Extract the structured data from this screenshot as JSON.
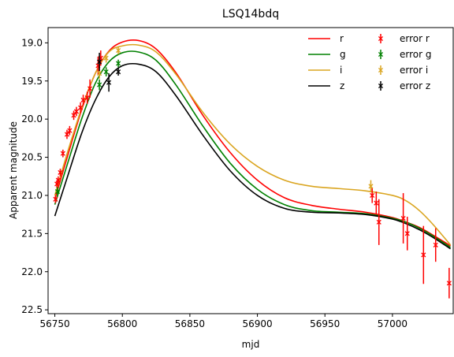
{
  "chart_data": {
    "type": "line",
    "title": "LSQ14bdq",
    "xlabel": "mjd",
    "ylabel": "Apparent magnitude",
    "xlim": [
      56745,
      57045
    ],
    "ylim": [
      22.55,
      18.8
    ],
    "y_inverted": true,
    "grid": false,
    "legend_position": "top-right",
    "x_ticks": [
      {
        "value": 56750,
        "label": "56750"
      },
      {
        "value": 56800,
        "label": "56800"
      },
      {
        "value": 56850,
        "label": "56850"
      },
      {
        "value": 56900,
        "label": "56900"
      },
      {
        "value": 56950,
        "label": "56950"
      },
      {
        "value": 57000,
        "label": "57000"
      }
    ],
    "y_ticks": [
      {
        "value": 19.0,
        "label": "19.0"
      },
      {
        "value": 19.5,
        "label": "19.5"
      },
      {
        "value": 20.0,
        "label": "20.0"
      },
      {
        "value": 20.5,
        "label": "20.5"
      },
      {
        "value": 21.0,
        "label": "21.0"
      },
      {
        "value": 21.5,
        "label": "21.5"
      },
      {
        "value": 22.0,
        "label": "22.0"
      },
      {
        "value": 22.5,
        "label": "22.5"
      }
    ],
    "model_series": [
      {
        "name": "r",
        "color": "#ff0000",
        "x": [
          56750,
          56760,
          56770,
          56780,
          56790,
          56800,
          56812,
          56825,
          56840,
          56860,
          56880,
          56900,
          56920,
          56940,
          56960,
          56980,
          57000,
          57010,
          57020,
          57030,
          57043
        ],
        "y": [
          21.05,
          20.45,
          19.87,
          19.4,
          19.11,
          18.99,
          18.97,
          19.08,
          19.4,
          19.96,
          20.44,
          20.8,
          21.03,
          21.13,
          21.18,
          21.22,
          21.29,
          21.35,
          21.42,
          21.52,
          21.66
        ]
      },
      {
        "name": "g",
        "color": "#008000",
        "x": [
          56750,
          56760,
          56770,
          56780,
          56790,
          56800,
          56812,
          56825,
          56840,
          56860,
          56880,
          56900,
          56920,
          56940,
          56960,
          56980,
          57000,
          57010,
          57020,
          57030,
          57043
        ],
        "y": [
          21.12,
          20.55,
          19.99,
          19.53,
          19.25,
          19.13,
          19.12,
          19.23,
          19.56,
          20.1,
          20.58,
          20.92,
          21.12,
          21.2,
          21.22,
          21.24,
          21.3,
          21.35,
          21.43,
          21.53,
          21.68
        ]
      },
      {
        "name": "i",
        "color": "#daa520",
        "x": [
          56750,
          56760,
          56770,
          56780,
          56790,
          56800,
          56812,
          56825,
          56840,
          56860,
          56880,
          56900,
          56920,
          56940,
          56960,
          56980,
          57000,
          57010,
          57020,
          57030,
          57043
        ],
        "y": [
          21.0,
          20.4,
          19.85,
          19.4,
          19.12,
          19.04,
          19.03,
          19.12,
          19.42,
          19.92,
          20.33,
          20.62,
          20.8,
          20.88,
          20.91,
          20.94,
          21.0,
          21.07,
          21.2,
          21.38,
          21.65
        ]
      },
      {
        "name": "z",
        "color": "#000000",
        "x": [
          56750,
          56760,
          56770,
          56780,
          56790,
          56800,
          56812,
          56825,
          56840,
          56860,
          56880,
          56900,
          56920,
          56940,
          56960,
          56980,
          57000,
          57010,
          57020,
          57030,
          57043
        ],
        "y": [
          21.27,
          20.72,
          20.18,
          19.75,
          19.45,
          19.3,
          19.28,
          19.38,
          19.7,
          20.22,
          20.68,
          21.0,
          21.17,
          21.22,
          21.23,
          21.25,
          21.31,
          21.37,
          21.45,
          21.55,
          21.7
        ]
      }
    ],
    "error_series": [
      {
        "name": "error r",
        "color": "#ff0000",
        "points": [
          {
            "x": 56750.5,
            "y": 21.05,
            "err": 0.05
          },
          {
            "x": 56751.5,
            "y": 20.85,
            "err": 0.05
          },
          {
            "x": 56752.5,
            "y": 20.8,
            "err": 0.05
          },
          {
            "x": 56754,
            "y": 20.7,
            "err": 0.05
          },
          {
            "x": 56756,
            "y": 20.45,
            "err": 0.05
          },
          {
            "x": 56759,
            "y": 20.2,
            "err": 0.06
          },
          {
            "x": 56761,
            "y": 20.15,
            "err": 0.06
          },
          {
            "x": 56764,
            "y": 19.95,
            "err": 0.06
          },
          {
            "x": 56766,
            "y": 19.9,
            "err": 0.06
          },
          {
            "x": 56769,
            "y": 19.85,
            "err": 0.07
          },
          {
            "x": 56771,
            "y": 19.75,
            "err": 0.07
          },
          {
            "x": 56774,
            "y": 19.72,
            "err": 0.08
          },
          {
            "x": 56776,
            "y": 19.6,
            "err": 0.12
          },
          {
            "x": 56782,
            "y": 19.3,
            "err": 0.12
          },
          {
            "x": 56784,
            "y": 19.2,
            "err": 0.1
          },
          {
            "x": 56985,
            "y": 21.0,
            "err": 0.1
          },
          {
            "x": 56988,
            "y": 21.1,
            "err": 0.15
          },
          {
            "x": 56990,
            "y": 21.35,
            "err": 0.3
          },
          {
            "x": 57008,
            "y": 21.3,
            "err": 0.33
          },
          {
            "x": 57011,
            "y": 21.5,
            "err": 0.22
          },
          {
            "x": 57023,
            "y": 21.78,
            "err": 0.38
          },
          {
            "x": 57032,
            "y": 21.65,
            "err": 0.22
          },
          {
            "x": 57042,
            "y": 22.15,
            "err": 0.2
          }
        ]
      },
      {
        "name": "error g",
        "color": "#008000",
        "points": [
          {
            "x": 56752,
            "y": 20.95,
            "err": 0.06
          },
          {
            "x": 56783,
            "y": 19.55,
            "err": 0.07
          },
          {
            "x": 56788,
            "y": 19.38,
            "err": 0.06
          },
          {
            "x": 56797,
            "y": 19.27,
            "err": 0.05
          }
        ]
      },
      {
        "name": "error i",
        "color": "#daa520",
        "points": [
          {
            "x": 56783,
            "y": 19.4,
            "err": 0.07
          },
          {
            "x": 56788,
            "y": 19.2,
            "err": 0.06
          },
          {
            "x": 56797,
            "y": 19.1,
            "err": 0.05
          },
          {
            "x": 56984,
            "y": 20.88,
            "err": 0.08
          }
        ]
      },
      {
        "name": "error z",
        "color": "#000000",
        "points": [
          {
            "x": 56783,
            "y": 19.25,
            "err": 0.12
          },
          {
            "x": 56790,
            "y": 19.52,
            "err": 0.12
          },
          {
            "x": 56797,
            "y": 19.38,
            "err": 0.05
          }
        ]
      }
    ]
  }
}
